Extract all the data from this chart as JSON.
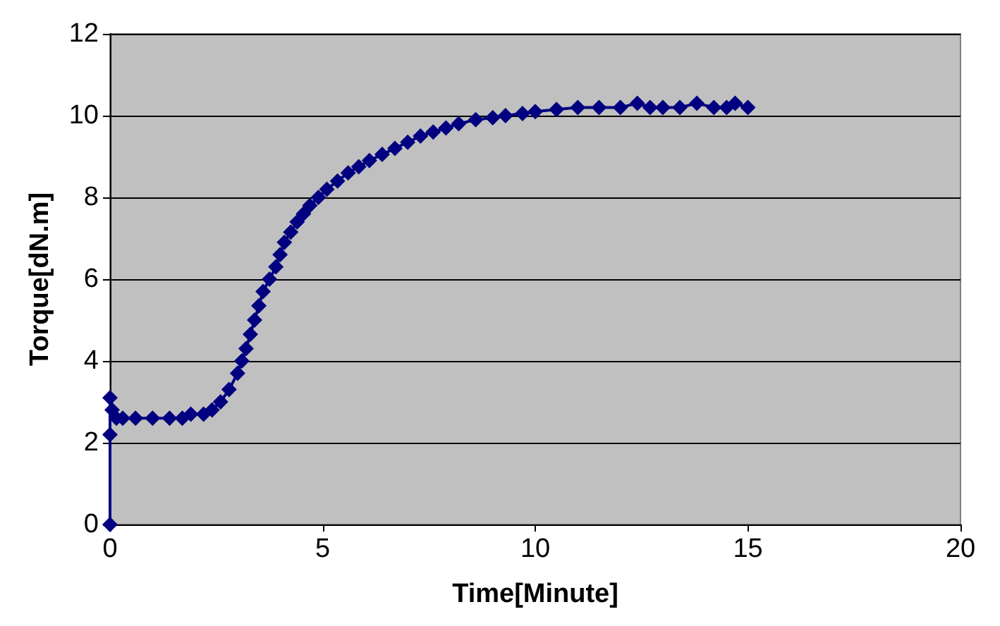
{
  "chart_data": {
    "type": "line",
    "xlabel": "Time[Minute]",
    "ylabel": "Torque[dN.m]",
    "x": [
      0,
      0,
      0,
      0.05,
      0.15,
      0.3,
      0.6,
      1.0,
      1.4,
      1.7,
      1.9,
      2.2,
      2.4,
      2.6,
      2.8,
      3.0,
      3.1,
      3.2,
      3.3,
      3.4,
      3.5,
      3.6,
      3.75,
      3.9,
      4.0,
      4.1,
      4.25,
      4.4,
      4.55,
      4.7,
      4.9,
      5.1,
      5.35,
      5.6,
      5.85,
      6.1,
      6.4,
      6.7,
      7.0,
      7.3,
      7.6,
      7.9,
      8.2,
      8.6,
      9.0,
      9.3,
      9.7,
      10.0,
      10.5,
      11.0,
      11.5,
      12.0,
      12.4,
      12.7,
      13.0,
      13.4,
      13.8,
      14.2,
      14.5,
      14.7,
      15.0
    ],
    "series": [
      {
        "color": "#000080",
        "values": [
          0,
          2.2,
          3.1,
          2.8,
          2.6,
          2.6,
          2.6,
          2.6,
          2.6,
          2.6,
          2.7,
          2.7,
          2.8,
          3.0,
          3.3,
          3.7,
          4.0,
          4.3,
          4.65,
          5.0,
          5.35,
          5.7,
          6.0,
          6.3,
          6.6,
          6.9,
          7.15,
          7.4,
          7.6,
          7.8,
          8.0,
          8.2,
          8.4,
          8.6,
          8.75,
          8.9,
          9.05,
          9.2,
          9.35,
          9.5,
          9.6,
          9.7,
          9.8,
          9.9,
          9.95,
          10.0,
          10.05,
          10.1,
          10.15,
          10.2,
          10.2,
          10.2,
          10.3,
          10.2,
          10.2,
          10.2,
          10.3,
          10.2,
          10.2,
          10.3,
          10.2
        ]
      }
    ],
    "xlim": [
      0,
      20
    ],
    "xticks": [
      0,
      5,
      10,
      15,
      20
    ],
    "ylim": [
      0,
      12
    ],
    "yticks": [
      0,
      2,
      4,
      6,
      8,
      10,
      12
    ],
    "grid": "y",
    "marker": "diamond",
    "line_style": "solid"
  }
}
